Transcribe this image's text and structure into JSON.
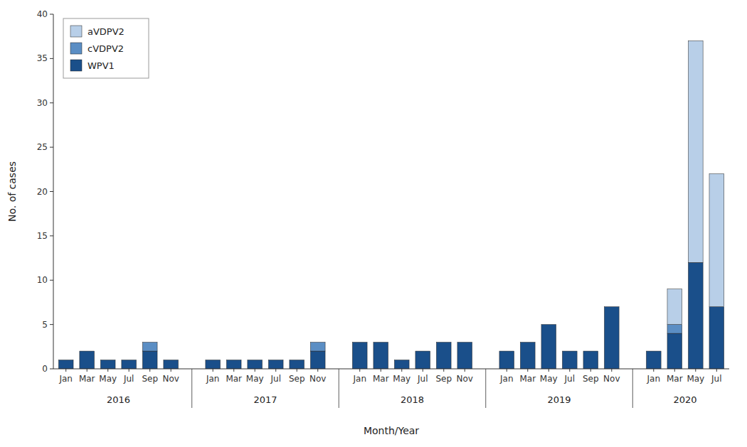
{
  "chart_data": {
    "type": "bar",
    "stacked": true,
    "categories": [
      [
        "Jan",
        "2016"
      ],
      [
        "Mar",
        "2016"
      ],
      [
        "May",
        "2016"
      ],
      [
        "Jul",
        "2016"
      ],
      [
        "Sep",
        "2016"
      ],
      [
        "Nov",
        "2016"
      ],
      [
        "Jan",
        "2017"
      ],
      [
        "Mar",
        "2017"
      ],
      [
        "May",
        "2017"
      ],
      [
        "Jul",
        "2017"
      ],
      [
        "Sep",
        "2017"
      ],
      [
        "Nov",
        "2017"
      ],
      [
        "Jan",
        "2018"
      ],
      [
        "Mar",
        "2018"
      ],
      [
        "May",
        "2018"
      ],
      [
        "Jul",
        "2018"
      ],
      [
        "Sep",
        "2018"
      ],
      [
        "Nov",
        "2018"
      ],
      [
        "Jan",
        "2019"
      ],
      [
        "Mar",
        "2019"
      ],
      [
        "May",
        "2019"
      ],
      [
        "Jul",
        "2019"
      ],
      [
        "Sep",
        "2019"
      ],
      [
        "Nov",
        "2019"
      ],
      [
        "Jan",
        "2020"
      ],
      [
        "Mar",
        "2020"
      ],
      [
        "May",
        "2020"
      ],
      [
        "Jul",
        "2020"
      ]
    ],
    "series": [
      {
        "name": "WPV1",
        "color": "#1a4f8a",
        "values": [
          1,
          2,
          1,
          1,
          2,
          1,
          1,
          1,
          1,
          1,
          1,
          2,
          3,
          3,
          1,
          2,
          3,
          3,
          2,
          3,
          5,
          2,
          2,
          7,
          2,
          4,
          12,
          7
        ]
      },
      {
        "name": "cVDPV2",
        "color": "#5b8ec4",
        "values": [
          0,
          0,
          0,
          0,
          1,
          0,
          0,
          0,
          0,
          0,
          0,
          1,
          0,
          0,
          0,
          0,
          0,
          0,
          0,
          0,
          0,
          0,
          0,
          0,
          0,
          1,
          0,
          0
        ]
      },
      {
        "name": "aVDPV2",
        "color": "#b8cfe8",
        "values": [
          0,
          0,
          0,
          0,
          0,
          0,
          0,
          0,
          0,
          0,
          0,
          0,
          0,
          0,
          0,
          0,
          0,
          0,
          0,
          0,
          0,
          0,
          0,
          0,
          0,
          4,
          25,
          15
        ]
      }
    ],
    "ylabel": "No. of cases",
    "xlabel": "Month/Year",
    "ylim": [
      0,
      40
    ],
    "yticks": [
      0,
      5,
      10,
      15,
      20,
      25,
      30,
      35,
      40
    ],
    "legend": "upper left",
    "grid": false
  }
}
